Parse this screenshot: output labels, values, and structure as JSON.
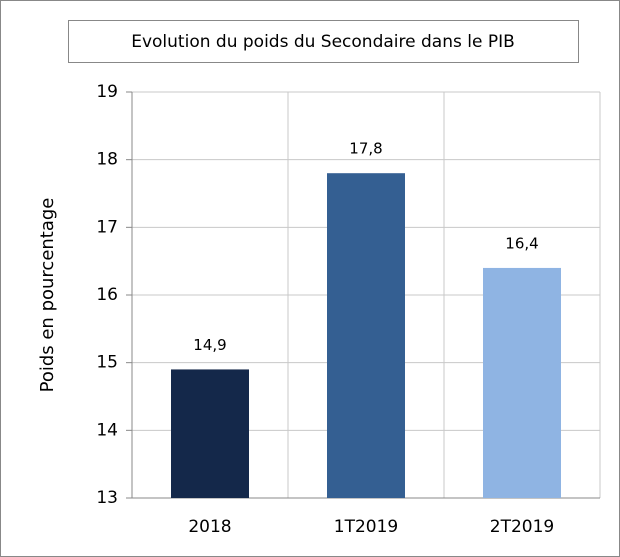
{
  "chart_data": {
    "type": "bar",
    "title": "Evolution du poids du Secondaire dans le PIB",
    "ylabel": "Poids en pourcentage",
    "categories": [
      "2018",
      "1T2019",
      "2T2019"
    ],
    "values": [
      14.9,
      17.8,
      16.4
    ],
    "value_labels": [
      "14,9",
      "17,8",
      "16,4"
    ],
    "colors": [
      "#14284a",
      "#345f92",
      "#8fb4e3"
    ],
    "ylim": [
      13,
      19
    ],
    "yticks": [
      13,
      14,
      15,
      16,
      17,
      18,
      19
    ],
    "grid": true
  }
}
